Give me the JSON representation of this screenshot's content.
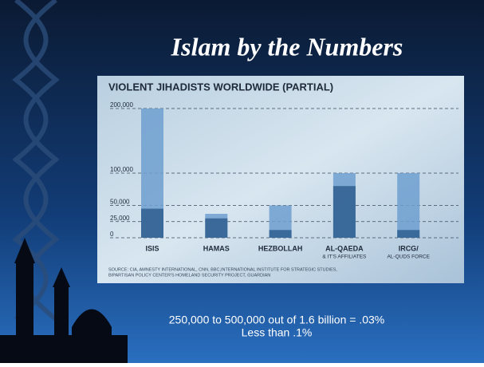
{
  "slide_title": "Islam by the Numbers",
  "caption": [
    "250,000 to 500,000 out of 1.6 billion = .03%",
    "Less than .1%"
  ],
  "chart_data": {
    "type": "bar",
    "title": "VIOLENT JIHADISTS WORLDWIDE (PARTIAL)",
    "categories": [
      "ISIS",
      "HAMAS",
      "HEZBOLLAH",
      "AL-QAEDA",
      "IRCG/"
    ],
    "category_notes": [
      null,
      null,
      null,
      "& IT'S AFFILIATES",
      "AL-QUDS FORCE"
    ],
    "series": [
      {
        "color": "#6f9fd0",
        "values": [
          200000,
          37000,
          50000,
          100000,
          100000
        ]
      },
      {
        "color": "#2f5f8f",
        "values": [
          45000,
          30000,
          12000,
          80000,
          12000
        ]
      }
    ],
    "ylim": [
      0,
      200000
    ],
    "yticks": [
      0,
      {
        "value": 25000,
        "label": "25,000"
      },
      {
        "value": 50000,
        "label": "50,000"
      },
      {
        "value": 100000,
        "label": "100,000"
      },
      {
        "value": 200000,
        "label": "200,000"
      }
    ],
    "grid": true,
    "source": [
      "SOURCE: CIA, AMNESTY INTERNATIONAL, CNN, BBC,INTERNATIONAL INSTITUTE FOR STRATEGIC STUDIES,",
      "BIPARTISAN POLICY CENTER'S HOMELAND SECURITY PROJECT, GUARDIAN"
    ]
  }
}
